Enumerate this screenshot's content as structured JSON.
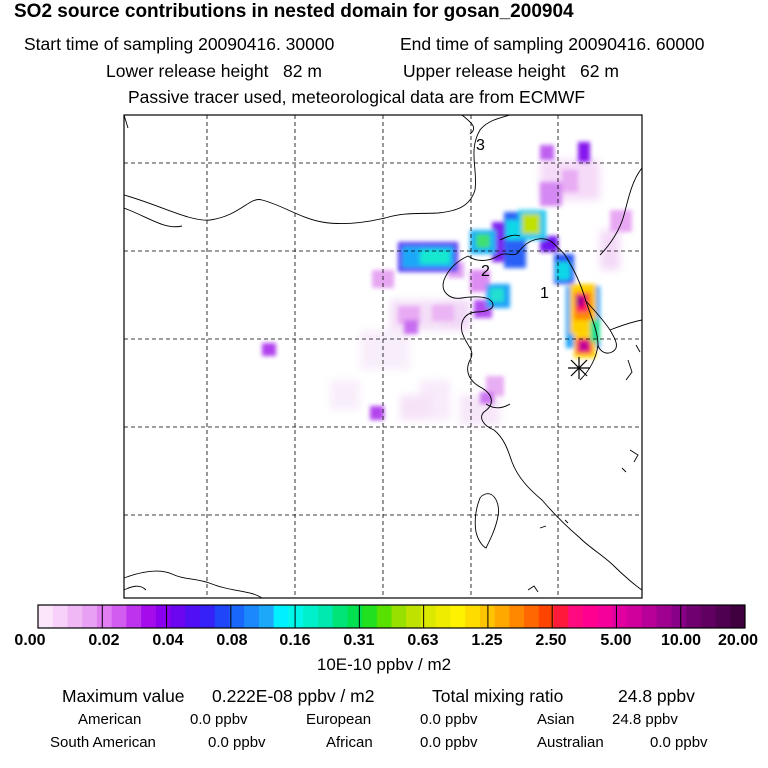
{
  "header": {
    "title": "SO2 source contributions in nested domain for gosan_200904",
    "start_time": "Start time of sampling 20090416. 30000",
    "end_time": "End time of sampling 20090416. 60000",
    "lower_release": "Lower release height   82 m",
    "upper_release": "Upper release height   62 m",
    "tracer_info": "Passive tracer used, meteorological data are from ECMWF"
  },
  "map": {
    "labels": [
      "1",
      "2",
      "3"
    ],
    "receptor_marker": "asterisk"
  },
  "colorbar": {
    "ticks": [
      "0.00",
      "0.02",
      "0.04",
      "0.08",
      "0.16",
      "0.31",
      "0.63",
      "1.25",
      "2.50",
      "5.00",
      "10.00",
      "20.00"
    ],
    "units": "10E-10 ppbv / m2",
    "colors": [
      "#fbe6fb",
      "#f7d1f9",
      "#f0b9f6",
      "#e8a0f4",
      "#e07ef2",
      "#d35cf0",
      "#bd33ee",
      "#a40cec",
      "#8a00ee",
      "#6c05f0",
      "#5010f3",
      "#3621f6",
      "#1f46f9",
      "#1a68fb",
      "#1b89fb",
      "#1ca9fa",
      "#00f0ff",
      "#00f6e8",
      "#00f0cc",
      "#00e9b0",
      "#00e478",
      "#00e050",
      "#20e020",
      "#58e000",
      "#98e000",
      "#c0e200",
      "#dce800",
      "#f0ec00",
      "#fff200",
      "#ffdc00",
      "#ffc400",
      "#ffa800",
      "#ff8800",
      "#ff6800",
      "#ff4400",
      "#ff1a3c",
      "#ff0a80",
      "#ff0090",
      "#f5009a",
      "#e000a0",
      "#d0009c",
      "#b80098",
      "#a00090",
      "#880088",
      "#700070",
      "#600060",
      "#500050",
      "#400040"
    ]
  },
  "stats": {
    "max_label": "Maximum value",
    "max_value": "0.222E-08 ppbv / m2",
    "total_label": "Total mixing ratio",
    "total_value": "24.8 ppbv",
    "regions": [
      {
        "name": "American",
        "value": "0.0 ppbv"
      },
      {
        "name": "European",
        "value": "0.0 ppbv"
      },
      {
        "name": "Asian",
        "value": "24.8 ppbv"
      },
      {
        "name": "South American",
        "value": "0.0 ppbv"
      },
      {
        "name": "African",
        "value": "0.0 ppbv"
      },
      {
        "name": "Australian",
        "value": "0.0 ppbv"
      }
    ]
  }
}
